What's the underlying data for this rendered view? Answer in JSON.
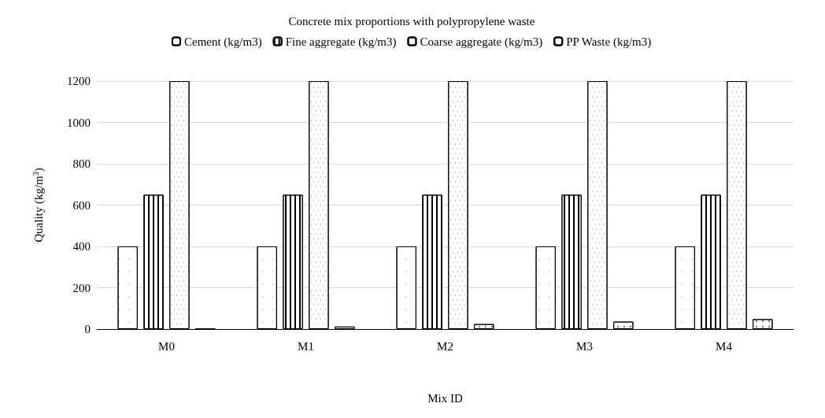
{
  "chart_data": {
    "type": "bar",
    "title": "Concrete mix proportions with polypropylene waste",
    "xlabel": "Mix ID",
    "ylabel": "Quality (kg/m$^{3}$)",
    "categories": [
      "M0",
      "M1",
      "M2",
      "M3",
      "M4"
    ],
    "series": [
      {
        "name": "Cement (kg/m3)",
        "color": "#ffffff",
        "values": [
          400,
          400,
          400,
          400,
          400
        ]
      },
      {
        "name": "Fine aggregate (kg/m3)",
        "color": "#ffffff",
        "values": [
          650,
          650,
          650,
          650,
          650
        ]
      },
      {
        "name": "Coarse aggregate (kg/m3)",
        "color": "#ffffff",
        "values": [
          1200,
          1200,
          1200,
          1200,
          1200
        ]
      },
      {
        "name": "PP Waste (kg/m3)",
        "color": "#ffffff",
        "values": [
          0,
          12,
          24,
          36,
          48
        ]
      }
    ],
    "ylim": [
      0,
      1200
    ],
    "yticks": [
      0,
      200,
      400,
      600,
      800,
      1000,
      1200
    ],
    "grid": "y",
    "legend": "top"
  }
}
